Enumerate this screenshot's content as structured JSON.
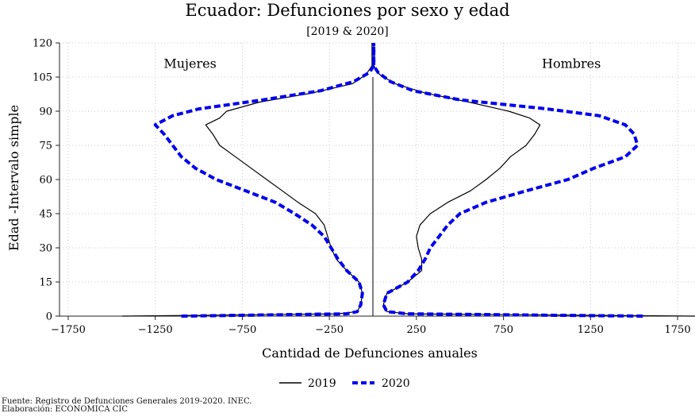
{
  "chart_data": {
    "type": "line",
    "title": "Ecuador: Defunciones por sexo y edad",
    "subtitle": "[2019 & 2020]",
    "xlabel": "Cantidad de Defunciones anuales",
    "ylabel": "Edad -Intervalo simple",
    "xlim": [
      -1800,
      1850
    ],
    "ylim": [
      0,
      120
    ],
    "xticks": [
      -1750,
      -1250,
      -750,
      -250,
      250,
      750,
      1250,
      1750
    ],
    "xtick_labels": [
      "−1750",
      "−1250",
      "−750",
      "−250",
      "250",
      "750",
      "1250",
      "1750"
    ],
    "yticks": [
      0,
      15,
      30,
      45,
      60,
      75,
      90,
      105,
      120
    ],
    "grid": true,
    "legend_position": "bottom",
    "annotations": [
      {
        "text": "Mujeres",
        "x": -1050,
        "y": 109
      },
      {
        "text": "Hombres",
        "x": 1140,
        "y": 109
      }
    ],
    "series": [
      {
        "name": "2019",
        "group": "Mujeres",
        "color": "#000000",
        "style": "solid",
        "points": [
          [
            -1440,
            0
          ],
          [
            -200,
            1
          ],
          [
            -90,
            2
          ],
          [
            -70,
            5
          ],
          [
            -60,
            10
          ],
          [
            -80,
            15
          ],
          [
            -150,
            20
          ],
          [
            -210,
            25
          ],
          [
            -240,
            30
          ],
          [
            -260,
            35
          ],
          [
            -280,
            40
          ],
          [
            -330,
            45
          ],
          [
            -430,
            50
          ],
          [
            -520,
            55
          ],
          [
            -610,
            60
          ],
          [
            -700,
            65
          ],
          [
            -790,
            70
          ],
          [
            -880,
            75
          ],
          [
            -920,
            80
          ],
          [
            -960,
            84
          ],
          [
            -880,
            87
          ],
          [
            -840,
            90
          ],
          [
            -650,
            94
          ],
          [
            -350,
            98
          ],
          [
            -120,
            102
          ],
          [
            -40,
            106
          ],
          [
            -5,
            110
          ],
          [
            -5,
            120
          ]
        ]
      },
      {
        "name": "2019",
        "group": "Hombres",
        "color": "#000000",
        "style": "solid",
        "points": [
          [
            1870,
            0
          ],
          [
            200,
            1
          ],
          [
            80,
            2
          ],
          [
            60,
            5
          ],
          [
            80,
            10
          ],
          [
            200,
            15
          ],
          [
            280,
            20
          ],
          [
            280,
            25
          ],
          [
            260,
            30
          ],
          [
            250,
            35
          ],
          [
            270,
            40
          ],
          [
            330,
            45
          ],
          [
            430,
            50
          ],
          [
            560,
            55
          ],
          [
            650,
            60
          ],
          [
            730,
            65
          ],
          [
            790,
            70
          ],
          [
            880,
            75
          ],
          [
            930,
            80
          ],
          [
            960,
            84
          ],
          [
            900,
            87
          ],
          [
            780,
            90
          ],
          [
            550,
            94
          ],
          [
            300,
            98
          ],
          [
            130,
            102
          ],
          [
            40,
            106
          ],
          [
            5,
            110
          ],
          [
            5,
            120
          ]
        ]
      },
      {
        "name": "2020",
        "group": "Mujeres",
        "color": "#0000ee",
        "style": "dashed",
        "points": [
          [
            -1100,
            0
          ],
          [
            -150,
            1
          ],
          [
            -90,
            2
          ],
          [
            -70,
            5
          ],
          [
            -60,
            10
          ],
          [
            -80,
            15
          ],
          [
            -150,
            20
          ],
          [
            -200,
            25
          ],
          [
            -240,
            30
          ],
          [
            -280,
            35
          ],
          [
            -350,
            40
          ],
          [
            -450,
            45
          ],
          [
            -560,
            50
          ],
          [
            -730,
            55
          ],
          [
            -900,
            60
          ],
          [
            -1020,
            65
          ],
          [
            -1100,
            70
          ],
          [
            -1150,
            75
          ],
          [
            -1200,
            80
          ],
          [
            -1250,
            84
          ],
          [
            -1150,
            88
          ],
          [
            -1000,
            91
          ],
          [
            -630,
            95
          ],
          [
            -300,
            99
          ],
          [
            -110,
            103
          ],
          [
            -20,
            107
          ],
          [
            5,
            110
          ],
          [
            5,
            120
          ]
        ]
      },
      {
        "name": "2020",
        "group": "Hombres",
        "color": "#0000ee",
        "style": "dashed",
        "points": [
          [
            1550,
            0
          ],
          [
            200,
            1
          ],
          [
            80,
            2
          ],
          [
            60,
            5
          ],
          [
            80,
            10
          ],
          [
            200,
            15
          ],
          [
            260,
            20
          ],
          [
            300,
            25
          ],
          [
            330,
            30
          ],
          [
            380,
            35
          ],
          [
            430,
            40
          ],
          [
            500,
            45
          ],
          [
            650,
            50
          ],
          [
            880,
            55
          ],
          [
            1120,
            60
          ],
          [
            1270,
            65
          ],
          [
            1450,
            70
          ],
          [
            1520,
            75
          ],
          [
            1500,
            80
          ],
          [
            1450,
            84
          ],
          [
            1300,
            88
          ],
          [
            1000,
            91
          ],
          [
            500,
            95
          ],
          [
            230,
            99
          ],
          [
            100,
            103
          ],
          [
            30,
            107
          ],
          [
            5,
            110
          ],
          [
            5,
            120
          ]
        ]
      }
    ]
  },
  "legend": [
    {
      "label": "2019",
      "color": "#000000",
      "style": "solid"
    },
    {
      "label": "2020",
      "color": "#0000ee",
      "style": "dashed"
    }
  ],
  "footer": {
    "line1": "Fuente: Registro de Defunciones Generales 2019-2020. INEC.",
    "line2": "Elaboración: ECONOMICA CIC"
  }
}
